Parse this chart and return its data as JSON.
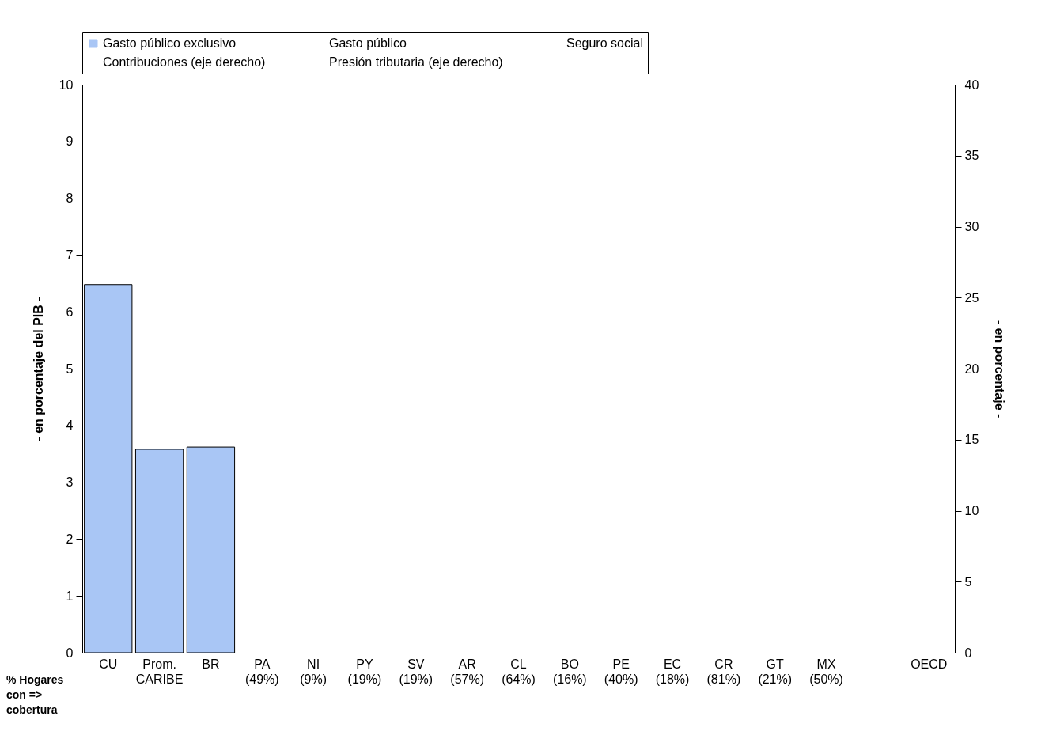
{
  "chart_data": {
    "type": "bar",
    "categories": [
      "CU",
      "Prom.\nCARIBE",
      "BR",
      "PA\n(49%)",
      "NI\n(9%)",
      "PY\n(19%)",
      "SV\n(19%)",
      "AR\n(57%)",
      "CL\n(64%)",
      "BO\n(16%)",
      "PE\n(40%)",
      "EC\n(18%)",
      "CR\n(81%)",
      "GT\n(21%)",
      "MX\n(50%)",
      null,
      "OECD"
    ],
    "series": [
      {
        "name": "Gasto público exclusivo",
        "color": "#a9c6f5",
        "values": [
          6.48,
          3.58,
          3.62,
          null,
          null,
          null,
          null,
          null,
          null,
          null,
          null,
          null,
          null,
          null,
          null,
          null,
          null
        ]
      },
      {
        "name": "Gasto público",
        "values": [
          null,
          null,
          null,
          null,
          null,
          null,
          null,
          null,
          null,
          null,
          null,
          null,
          null,
          null,
          null,
          null,
          null
        ]
      },
      {
        "name": "Seguro social",
        "values": [
          null,
          null,
          null,
          null,
          null,
          null,
          null,
          null,
          null,
          null,
          null,
          null,
          null,
          null,
          null,
          null,
          null
        ]
      },
      {
        "name": "Contribuciones (eje derecho)",
        "type": "line",
        "axis": "y2",
        "values": [
          null,
          null,
          null,
          null,
          null,
          null,
          null,
          null,
          null,
          null,
          null,
          null,
          null,
          null,
          null,
          null,
          null
        ]
      },
      {
        "name": "Presión tributaria (eje derecho)",
        "type": "line",
        "axis": "y2",
        "values": [
          null,
          null,
          null,
          null,
          null,
          null,
          null,
          null,
          null,
          null,
          null,
          null,
          null,
          null,
          null,
          null,
          null
        ]
      }
    ],
    "ylabel": "- en porcentaje del PIB -",
    "y2label": "- en porcentaje -",
    "ylim": [
      0,
      10
    ],
    "yticks": [
      0,
      1,
      2,
      3,
      4,
      5,
      6,
      7,
      8,
      9,
      10
    ],
    "y2lim": [
      0,
      40
    ],
    "y2ticks": [
      0,
      5,
      10,
      15,
      20,
      25,
      30,
      35,
      40
    ],
    "grid": false,
    "legend": "top",
    "annotations": [
      "% Hogares con => cobertura"
    ]
  }
}
